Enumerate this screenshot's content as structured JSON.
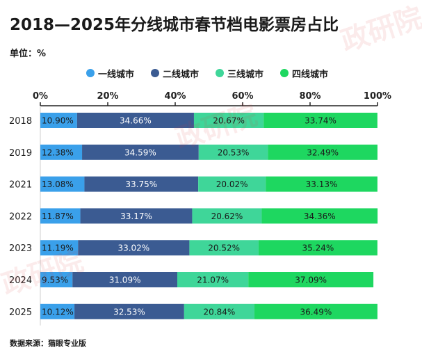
{
  "title": "2018—2025年分线城市春节档电影票房占比",
  "unit_label": "单位：%",
  "source": "数据来源：猫眼专业版",
  "watermark": "政研院",
  "colors": {
    "tier1": "#3aa0ea",
    "tier2": "#3b5b92",
    "tier3": "#3fd699",
    "tier4": "#1ed760",
    "axis": "#222222"
  },
  "chart_data": {
    "type": "bar",
    "orientation": "horizontal",
    "stacked": true,
    "categories": [
      "2018",
      "2019",
      "2021",
      "2022",
      "2023",
      "2024",
      "2025"
    ],
    "series": [
      {
        "name": "一线城市",
        "values": [
          10.9,
          12.38,
          13.08,
          11.87,
          11.19,
          9.53,
          10.12
        ],
        "labels": [
          "10.90%",
          "12.38%",
          "13.08%",
          "11.87%",
          "11.19%",
          "9.53%",
          "10.12%"
        ]
      },
      {
        "name": "二线城市",
        "values": [
          34.66,
          34.59,
          33.75,
          33.17,
          33.02,
          31.09,
          32.53
        ],
        "labels": [
          "34.66%",
          "34.59%",
          "33.75%",
          "33.17%",
          "33.02%",
          "31.09%",
          "32.53%"
        ]
      },
      {
        "name": "三线城市",
        "values": [
          20.67,
          20.53,
          20.02,
          20.62,
          20.52,
          21.07,
          20.84
        ],
        "labels": [
          "20.67%",
          "20.53%",
          "20.02%",
          "20.62%",
          "20.52%",
          "21.07%",
          "20.84%"
        ]
      },
      {
        "name": "四线城市",
        "values": [
          33.74,
          32.49,
          33.13,
          34.36,
          35.24,
          37.09,
          36.49
        ],
        "labels": [
          "33.74%",
          "32.49%",
          "33.13%",
          "34.36%",
          "35.24%",
          "37.09%",
          "36.49%"
        ]
      }
    ],
    "x_ticks": [
      "0%",
      "20%",
      "40%",
      "60%",
      "80%",
      "100%"
    ],
    "xlim": [
      0,
      100
    ],
    "legend_position": "top",
    "grid": false
  }
}
